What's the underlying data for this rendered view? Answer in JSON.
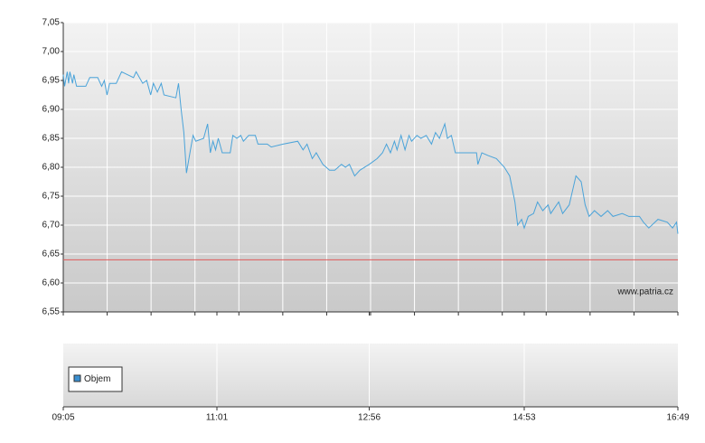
{
  "chart_data": {
    "type": "line",
    "x": [
      "09:05",
      "09:06",
      "09:08",
      "09:09",
      "09:10",
      "09:12",
      "09:13",
      "09:15",
      "09:22",
      "09:25",
      "09:31",
      "09:34",
      "09:36",
      "09:38",
      "09:40",
      "09:45",
      "09:49",
      "09:58",
      "10:00",
      "10:05",
      "10:08",
      "10:11",
      "10:13",
      "10:16",
      "10:19",
      "10:21",
      "10:30",
      "10:32",
      "10:34",
      "10:36",
      "10:38",
      "10:41",
      "10:43",
      "10:45",
      "10:51",
      "10:54",
      "10:56",
      "10:58",
      "11:00",
      "11:02",
      "11:05",
      "11:11",
      "11:13",
      "11:16",
      "11:19",
      "11:21",
      "11:25",
      "11:30",
      "11:32",
      "11:39",
      "11:42",
      "11:51",
      "12:02",
      "12:06",
      "12:09",
      "12:13",
      "12:16",
      "12:21",
      "12:26",
      "12:30",
      "12:35",
      "12:38",
      "12:41",
      "12:45",
      "12:49",
      "12:56",
      "13:02",
      "13:06",
      "13:09",
      "13:12",
      "13:15",
      "13:17",
      "13:20",
      "13:23",
      "13:26",
      "13:28",
      "13:32",
      "13:35",
      "13:39",
      "13:43",
      "13:46",
      "13:49",
      "13:53",
      "13:55",
      "13:58",
      "14:01",
      "14:17",
      "14:18",
      "14:21",
      "14:26",
      "14:32",
      "14:38",
      "14:42",
      "14:46",
      "14:48",
      "14:51",
      "14:53",
      "14:56",
      "15:00",
      "15:03",
      "15:07",
      "15:11",
      "15:13",
      "15:19",
      "15:22",
      "15:27",
      "15:32",
      "15:36",
      "15:39",
      "15:42",
      "15:46",
      "15:51",
      "15:56",
      "16:00",
      "16:07",
      "16:12",
      "16:20",
      "16:23",
      "16:27",
      "16:34",
      "16:41",
      "16:45",
      "16:48",
      "16:49"
    ],
    "series": [
      {
        "color": "#4aa3d9",
        "values": [
          6.96,
          6.94,
          6.965,
          6.945,
          6.965,
          6.945,
          6.96,
          6.94,
          6.94,
          6.955,
          6.955,
          6.94,
          6.95,
          6.925,
          6.945,
          6.945,
          6.965,
          6.955,
          6.965,
          6.945,
          6.95,
          6.925,
          6.945,
          6.93,
          6.945,
          6.925,
          6.92,
          6.945,
          6.9,
          6.86,
          6.79,
          6.83,
          6.855,
          6.845,
          6.85,
          6.875,
          6.825,
          6.845,
          6.83,
          6.85,
          6.825,
          6.825,
          6.855,
          6.85,
          6.855,
          6.845,
          6.855,
          6.855,
          6.84,
          6.84,
          6.835,
          6.84,
          6.845,
          6.83,
          6.84,
          6.815,
          6.825,
          6.805,
          6.795,
          6.795,
          6.805,
          6.8,
          6.805,
          6.785,
          6.795,
          6.805,
          6.815,
          6.825,
          6.84,
          6.825,
          6.845,
          6.83,
          6.855,
          6.83,
          6.855,
          6.845,
          6.855,
          6.85,
          6.855,
          6.84,
          6.86,
          6.85,
          6.875,
          6.85,
          6.855,
          6.825,
          6.825,
          6.805,
          6.825,
          6.82,
          6.815,
          6.8,
          6.785,
          6.74,
          6.7,
          6.71,
          6.695,
          6.715,
          6.72,
          6.74,
          6.725,
          6.735,
          6.72,
          6.74,
          6.72,
          6.735,
          6.785,
          6.775,
          6.735,
          6.715,
          6.725,
          6.715,
          6.725,
          6.715,
          6.72,
          6.715,
          6.715,
          6.705,
          6.695,
          6.71,
          6.705,
          6.695,
          6.705,
          6.685
        ]
      }
    ],
    "reference_line": 6.64,
    "reference_color": "#e05a5a",
    "ylim": [
      6.55,
      7.05
    ],
    "yticks": [
      {
        "value": 6.55,
        "label": "6,55"
      },
      {
        "value": 6.6,
        "label": "6,60"
      },
      {
        "value": 6.65,
        "label": "6,65"
      },
      {
        "value": 6.7,
        "label": "6,70"
      },
      {
        "value": 6.75,
        "label": "6,75"
      },
      {
        "value": 6.8,
        "label": "6,80"
      },
      {
        "value": 6.85,
        "label": "6,85"
      },
      {
        "value": 6.9,
        "label": "6,90"
      },
      {
        "value": 6.95,
        "label": "6,95"
      },
      {
        "value": 7.0,
        "label": "7,00"
      },
      {
        "value": 7.05,
        "label": "7,05"
      }
    ],
    "xlim": [
      "09:05",
      "16:49"
    ],
    "xticks": [
      "09:05",
      "11:01",
      "12:56",
      "14:53",
      "16:49"
    ],
    "grid": true,
    "watermark": "www.patria.cz",
    "volume_legend": "Objem",
    "volume_color": "#3a8fd0"
  }
}
